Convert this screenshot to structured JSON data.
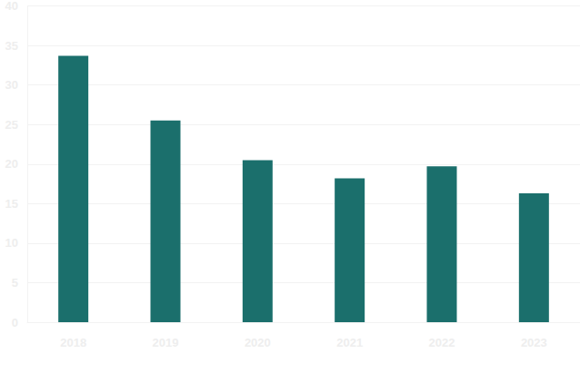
{
  "chart_data": {
    "type": "bar",
    "categories": [
      "2018",
      "2019",
      "2020",
      "2021",
      "2022",
      "2023"
    ],
    "values": [
      33.7,
      25.5,
      20.5,
      18.2,
      19.7,
      16.3
    ],
    "color": "#1b6f6c",
    "ylim": [
      0,
      40
    ],
    "yticks": [
      0,
      5,
      10,
      15,
      20,
      25,
      30,
      35,
      40
    ],
    "grid": true
  }
}
